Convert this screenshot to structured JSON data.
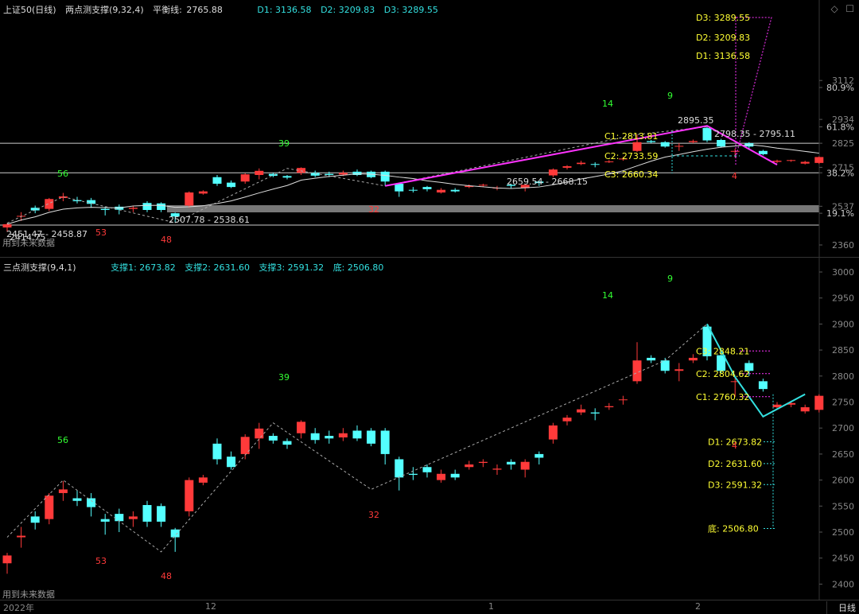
{
  "top": {
    "instrument": "上证50(日线)",
    "indicator": "两点测支撑(9,32,4)",
    "balance_label": "平衡线:",
    "balance_value": "2765.88",
    "d_values": [
      "D1: 3136.58",
      "D2: 3209.83",
      "D3: 3289.55"
    ],
    "axis": [
      {
        "label": "3112",
        "price": 3112
      },
      {
        "label": "80.9%",
        "price": 3080
      },
      {
        "label": "2934",
        "price": 2934
      },
      {
        "label": "61.8%",
        "price": 2900
      },
      {
        "label": "2825",
        "price": 2825
      },
      {
        "label": "2715",
        "price": 2715
      },
      {
        "label": "38.2%",
        "price": 2690
      },
      {
        "label": "2537",
        "price": 2537
      },
      {
        "label": "19.1%",
        "price": 2505
      },
      {
        "label": "2360",
        "price": 2360
      }
    ],
    "right_labels": [
      "D3: 3289.55",
      "D2: 3209.83",
      "D1: 3136.58",
      "C1: 2813.81",
      "C2: 2733.59",
      "C3: 2660.34"
    ],
    "annotations": [
      "2895.35",
      "2798.35 - 2795.11",
      "2659.54 - 2668.15",
      "2507.78 - 2538.61",
      "2451.47 - 2458.87",
      "2414.75"
    ],
    "counts": [
      "56",
      "53",
      "48",
      "39",
      "32",
      "14",
      "9",
      "4"
    ],
    "no_data": "用到未来数据"
  },
  "bottom": {
    "indicator": "三点测支撑(9,4,1)",
    "supports": [
      "支撑1: 2673.82",
      "支撑2: 2631.60",
      "支撑3: 2591.32",
      "底: 2506.80"
    ],
    "axis": [
      "3000",
      "2950",
      "2900",
      "2850",
      "2800",
      "2750",
      "2700",
      "2650",
      "2600",
      "2550",
      "2500",
      "2450",
      "2400"
    ],
    "right_labels": [
      "C3: 2848.21",
      "C2: 2804.62",
      "C1: 2760.32",
      "D1: 2673.82",
      "D2: 2631.60",
      "D3: 2591.32",
      "底: 2506.80"
    ],
    "counts": [
      "56",
      "53",
      "48",
      "39",
      "32",
      "14",
      "9",
      "4"
    ],
    "no_data": "用到未来数据"
  },
  "footer": {
    "date_labels": [
      "2022年",
      "12",
      "1",
      "2"
    ],
    "period": "日线"
  },
  "colors": {
    "up": "#ff3a3a",
    "down": "#54ffff",
    "magenta": "#ff33ff",
    "yellow": "#ffff33",
    "cyan": "#33e0e0"
  },
  "candles": [
    [
      2440,
      2455,
      2420,
      2460
    ],
    [
      2490,
      2493,
      2470,
      2510
    ],
    [
      2530,
      2518,
      2505,
      2540
    ],
    [
      2525,
      2570,
      2515,
      2575
    ],
    [
      2575,
      2582,
      2560,
      2598
    ],
    [
      2565,
      2560,
      2550,
      2580
    ],
    [
      2565,
      2548,
      2530,
      2575
    ],
    [
      2525,
      2520,
      2495,
      2535
    ],
    [
      2535,
      2521,
      2500,
      2545
    ],
    [
      2525,
      2530,
      2510,
      2540
    ],
    [
      2552,
      2520,
      2510,
      2560
    ],
    [
      2550,
      2520,
      2510,
      2555
    ],
    [
      2505,
      2490,
      2462,
      2508
    ],
    [
      2540,
      2600,
      2530,
      2605
    ],
    [
      2595,
      2605,
      2590,
      2610
    ],
    [
      2670,
      2640,
      2630,
      2680
    ],
    [
      2645,
      2625,
      2620,
      2655
    ],
    [
      2650,
      2683,
      2640,
      2688
    ],
    [
      2680,
      2699,
      2660,
      2710
    ],
    [
      2685,
      2676,
      2670,
      2690
    ],
    [
      2675,
      2668,
      2660,
      2680
    ],
    [
      2690,
      2712,
      2680,
      2715
    ],
    [
      2690,
      2677,
      2670,
      2700
    ],
    [
      2685,
      2680,
      2670,
      2695
    ],
    [
      2682,
      2690,
      2675,
      2700
    ],
    [
      2695,
      2680,
      2675,
      2705
    ],
    [
      2695,
      2670,
      2665,
      2700
    ],
    [
      2695,
      2650,
      2630,
      2700
    ],
    [
      2640,
      2605,
      2580,
      2645
    ],
    [
      2612,
      2610,
      2600,
      2625
    ],
    [
      2625,
      2615,
      2605,
      2630
    ],
    [
      2600,
      2612,
      2595,
      2620
    ],
    [
      2612,
      2605,
      2600,
      2620
    ],
    [
      2625,
      2630,
      2620,
      2637
    ],
    [
      2633,
      2635,
      2625,
      2640
    ],
    [
      2620,
      2622,
      2610,
      2630
    ],
    [
      2635,
      2630,
      2620,
      2640
    ],
    [
      2620,
      2635,
      2605,
      2640
    ],
    [
      2650,
      2643,
      2630,
      2655
    ],
    [
      2678,
      2705,
      2670,
      2710
    ],
    [
      2713,
      2720,
      2705,
      2725
    ],
    [
      2730,
      2736,
      2725,
      2745
    ],
    [
      2730,
      2728,
      2715,
      2738
    ],
    [
      2740,
      2742,
      2735,
      2748
    ],
    [
      2755,
      2755,
      2745,
      2762
    ],
    [
      2790,
      2830,
      2785,
      2865
    ],
    [
      2835,
      2830,
      2825,
      2840
    ],
    [
      2830,
      2810,
      2805,
      2835
    ],
    [
      2810,
      2813,
      2790,
      2825
    ],
    [
      2830,
      2835,
      2825,
      2842
    ],
    [
      2895,
      2838,
      2830,
      2900
    ],
    [
      2840,
      2810,
      2805,
      2845
    ],
    [
      2790,
      2790,
      2760,
      2800
    ],
    [
      2825,
      2810,
      2800,
      2830
    ],
    [
      2790,
      2775,
      2770,
      2795
    ],
    [
      2740,
      2745,
      2735,
      2750
    ],
    [
      2745,
      2748,
      2740,
      2750
    ],
    [
      2732,
      2740,
      2728,
      2745
    ],
    [
      2735,
      2762,
      2730,
      2765
    ]
  ]
}
